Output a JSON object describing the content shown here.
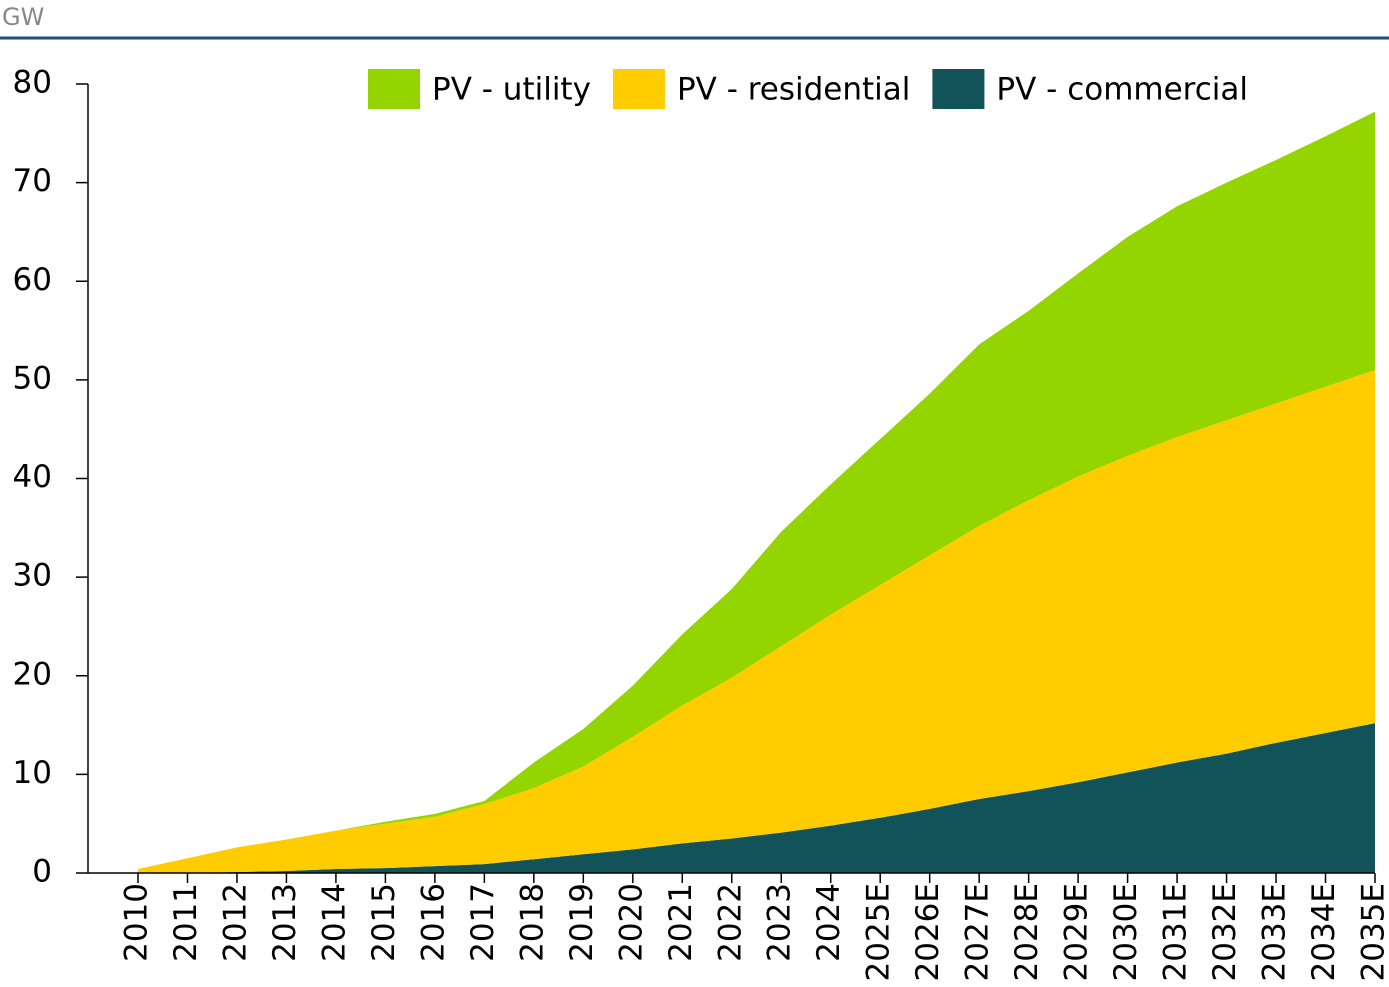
{
  "chart_data": {
    "type": "stacked_area",
    "y_label": "GW",
    "categories": [
      "2010",
      "2011",
      "2012",
      "2013",
      "2014",
      "2015",
      "2016",
      "2017",
      "2018",
      "2019",
      "2020",
      "2021",
      "2022",
      "2023",
      "2024",
      "2025E",
      "2026E",
      "2027E",
      "2028E",
      "2029E",
      "2030E",
      "2031E",
      "2032E",
      "2033E",
      "2034E",
      "2035E"
    ],
    "series": [
      {
        "name": "PV - utility",
        "color": "#94d500",
        "values": [
          0,
          0,
          0,
          0,
          0,
          0.2,
          0.3,
          0.3,
          2.6,
          3.8,
          5.2,
          7.2,
          9.0,
          11.6,
          13.2,
          14.8,
          16.4,
          18.4,
          19.2,
          20.6,
          22.2,
          23.4,
          24.1,
          24.7,
          25.4,
          26.2
        ]
      },
      {
        "name": "PV - residential",
        "color": "#ffcc00",
        "values": [
          0.4,
          1.5,
          2.5,
          3.2,
          3.9,
          4.5,
          5.0,
          6.1,
          7.2,
          8.9,
          11.4,
          14.0,
          16.3,
          18.9,
          21.4,
          23.6,
          25.7,
          27.7,
          29.5,
          31.0,
          32.1,
          33.0,
          33.8,
          34.4,
          35.1,
          35.8
        ]
      },
      {
        "name": "PV - commercial",
        "color": "#115358",
        "values": [
          0,
          0,
          0.1,
          0.2,
          0.4,
          0.5,
          0.7,
          0.9,
          1.4,
          1.9,
          2.4,
          3.0,
          3.5,
          4.1,
          4.8,
          5.6,
          6.5,
          7.5,
          8.3,
          9.2,
          10.2,
          11.2,
          12.1,
          13.2,
          14.2,
          15.2
        ]
      }
    ],
    "ylim": [
      0,
      80
    ],
    "yticks": [
      0,
      10,
      20,
      30,
      40,
      50,
      60,
      70,
      80
    ],
    "legend": "top-right"
  }
}
